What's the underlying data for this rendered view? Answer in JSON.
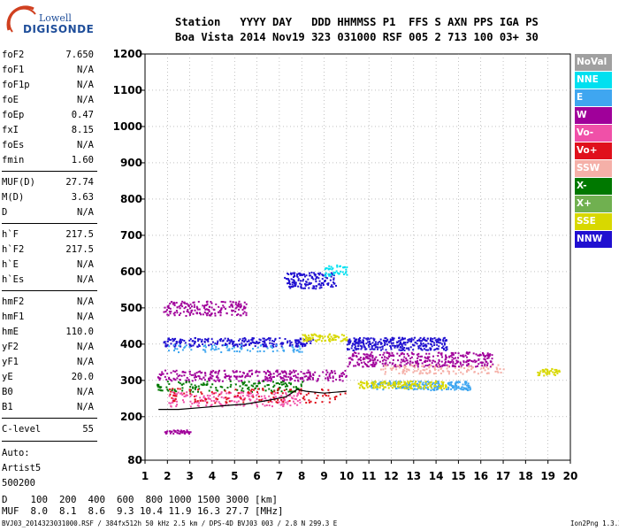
{
  "logo": {
    "top": "Lowell",
    "bottom": "DIGISONDE"
  },
  "header": {
    "line1": "Station   YYYY DAY   DDD HHMMSS P1  FFS S AXN PPS IGA PS",
    "line2": "Boa Vista 2014 Nov19 323 031000 RSF 005 2 713 100 03+ 30"
  },
  "params": [
    {
      "label": "foF2",
      "value": "7.650"
    },
    {
      "label": "foF1",
      "value": "N/A"
    },
    {
      "label": "foF1p",
      "value": "N/A"
    },
    {
      "label": "foE",
      "value": "N/A"
    },
    {
      "label": "foEp",
      "value": "0.47"
    },
    {
      "label": "fxI",
      "value": "8.15"
    },
    {
      "label": "foEs",
      "value": "N/A"
    },
    {
      "label": "fmin",
      "value": "1.60"
    },
    {
      "label": "MUF(D)",
      "value": "27.74"
    },
    {
      "label": "M(D)",
      "value": "3.63"
    },
    {
      "label": "D",
      "value": "N/A"
    },
    {
      "label": "h`F",
      "value": "217.5"
    },
    {
      "label": "h`F2",
      "value": "217.5"
    },
    {
      "label": "h`E",
      "value": "N/A"
    },
    {
      "label": "h`Es",
      "value": "N/A"
    },
    {
      "label": "hmF2",
      "value": "N/A"
    },
    {
      "label": "hmF1",
      "value": "N/A"
    },
    {
      "label": "hmE",
      "value": "110.0"
    },
    {
      "label": "yF2",
      "value": "N/A"
    },
    {
      "label": "yF1",
      "value": "N/A"
    },
    {
      "label": "yE",
      "value": "20.0"
    },
    {
      "label": "B0",
      "value": "N/A"
    },
    {
      "label": "B1",
      "value": "N/A"
    },
    {
      "label": "C-level",
      "value": "55"
    }
  ],
  "autoscale": {
    "line1": "Auto:",
    "line2": "Artist5",
    "line3": "500200"
  },
  "legend": [
    {
      "label": "NoVal",
      "color": "#a0a0a0"
    },
    {
      "label": "NNE",
      "color": "#00e0f0"
    },
    {
      "label": "E",
      "color": "#3fa6f0"
    },
    {
      "label": "W",
      "color": "#a0009a"
    },
    {
      "label": "Vo-",
      "color": "#f050a8"
    },
    {
      "label": "Vo+",
      "color": "#e0101c"
    },
    {
      "label": "SSW",
      "color": "#f5b0a8"
    },
    {
      "label": "X-",
      "color": "#007800"
    },
    {
      "label": "X+",
      "color": "#70b050"
    },
    {
      "label": "SSE",
      "color": "#d8d800"
    },
    {
      "label": "NNW",
      "color": "#2010d0"
    }
  ],
  "chart_data": {
    "type": "scatter",
    "x_ticks": [
      "1",
      "2",
      "3",
      "4",
      "5",
      "6",
      "7",
      "8",
      "9",
      "10",
      "11",
      "12",
      "13",
      "14",
      "15",
      "16",
      "17",
      "18",
      "19",
      "20"
    ],
    "y_ticks": [
      "80",
      "200",
      "300",
      "400",
      "500",
      "600",
      "700",
      "800",
      "900",
      "1000",
      "1100",
      "1200"
    ],
    "xlim": [
      1,
      20
    ],
    "ylim": [
      80,
      1200
    ],
    "grid": true,
    "legend_position": "right",
    "trace": [
      [
        1.6,
        220
      ],
      [
        2.5,
        220
      ],
      [
        3.5,
        225
      ],
      [
        4.5,
        230
      ],
      [
        5.5,
        235
      ],
      [
        6.5,
        245
      ],
      [
        7.3,
        255
      ],
      [
        7.8,
        275
      ],
      [
        8.2,
        270
      ],
      [
        9.0,
        265
      ],
      [
        10.0,
        270
      ]
    ],
    "clusters": [
      {
        "color": "#a0009a",
        "x": [
          1.5,
          10.0
        ],
        "y": [
          300,
          330
        ],
        "n": 300
      },
      {
        "color": "#2010d0",
        "x": [
          1.8,
          8.5
        ],
        "y": [
          395,
          420
        ],
        "n": 250
      },
      {
        "color": "#a0009a",
        "x": [
          10.0,
          16.5
        ],
        "y": [
          340,
          380
        ],
        "n": 350
      },
      {
        "color": "#2010d0",
        "x": [
          10.0,
          14.5
        ],
        "y": [
          385,
          420
        ],
        "n": 300
      },
      {
        "color": "#3fa6f0",
        "x": [
          11.0,
          15.5
        ],
        "y": [
          275,
          300
        ],
        "n": 200
      },
      {
        "color": "#d8d800",
        "x": [
          10.5,
          14.5
        ],
        "y": [
          280,
          300
        ],
        "n": 150
      },
      {
        "color": "#2010d0",
        "x": [
          7.2,
          9.5
        ],
        "y": [
          555,
          600
        ],
        "n": 150
      },
      {
        "color": "#a0009a",
        "x": [
          1.8,
          5.5
        ],
        "y": [
          480,
          520
        ],
        "n": 180
      },
      {
        "color": "#d8d800",
        "x": [
          8.0,
          10.0
        ],
        "y": [
          410,
          430
        ],
        "n": 80
      },
      {
        "color": "#007800",
        "x": [
          1.5,
          8.0
        ],
        "y": [
          270,
          300
        ],
        "n": 150
      },
      {
        "color": "#f5b0a8",
        "x": [
          11.5,
          17.0
        ],
        "y": [
          320,
          345
        ],
        "n": 120
      },
      {
        "color": "#d8d800",
        "x": [
          18.5,
          19.5
        ],
        "y": [
          315,
          335
        ],
        "n": 40
      },
      {
        "color": "#a0009a",
        "x": [
          1.8,
          3.0
        ],
        "y": [
          155,
          165
        ],
        "n": 40
      },
      {
        "color": "#f050a8",
        "x": [
          2.0,
          8.0
        ],
        "y": [
          230,
          270
        ],
        "n": 200
      },
      {
        "color": "#e0101c",
        "x": [
          2.0,
          10.0
        ],
        "y": [
          240,
          280
        ],
        "n": 120
      },
      {
        "color": "#00e0f0",
        "x": [
          9.0,
          10.0
        ],
        "y": [
          590,
          620
        ],
        "n": 40
      },
      {
        "color": "#3fa6f0",
        "x": [
          2.0,
          8.0
        ],
        "y": [
          380,
          400
        ],
        "n": 80
      }
    ]
  },
  "bottom": {
    "d_line": "D    100  200  400  600  800 1000 1500 3000 [km]",
    "muf_line": "MUF  8.0  8.1  8.6  9.3 10.4 11.9 16.3 27.7 [MHz]"
  },
  "footer": {
    "left": "BVJ03_2014323031000.RSF / 384fx512h 50 kHz 2.5 km / DPS-4D BVJ03 003 / 2.8 N 299.3 E",
    "right": "Ion2Png 1.3.20"
  }
}
